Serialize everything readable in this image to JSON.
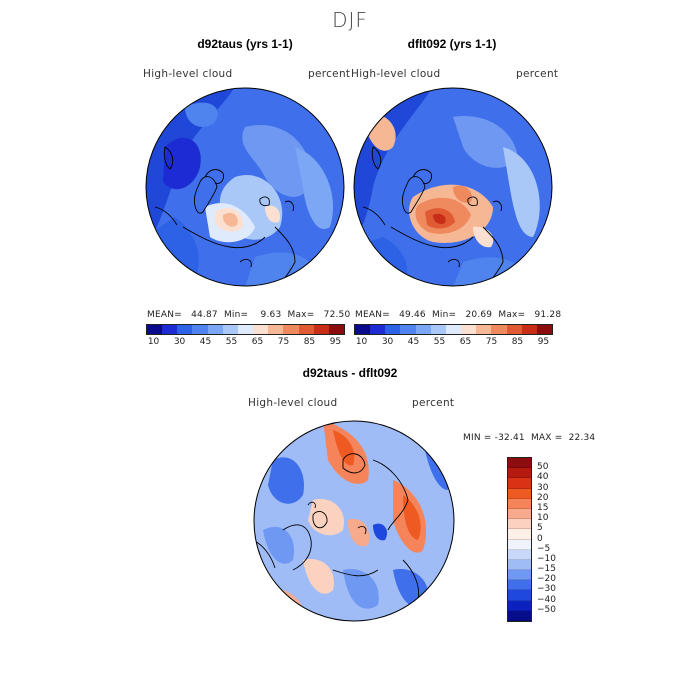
{
  "season": "DJF",
  "colors": {
    "abs_scale": [
      "#0a0a8c",
      "#1c2bd4",
      "#2d62e6",
      "#4f84ef",
      "#7ba7f5",
      "#a9c8f8",
      "#dfeafd",
      "#fbe0d2",
      "#f6b894",
      "#ee8a5e",
      "#e05a34",
      "#c82e17",
      "#8b0d0d"
    ],
    "diff_scale": [
      "#8b0d0d",
      "#b51a0e",
      "#d83314",
      "#ee5a22",
      "#f5845a",
      "#f8ab8c",
      "#fbd2c0",
      "#fdf0e6",
      "#eef3fd",
      "#c8d8fb",
      "#9fbcf7",
      "#6e98f2",
      "#3f6feb",
      "#1f48de",
      "#0b22c0",
      "#050d8a"
    ],
    "land_outline": "#000000"
  },
  "panels": [
    {
      "title": "d92taus (yrs 1-1)",
      "variable": "High-level cloud",
      "units": "percent",
      "stats": {
        "mean_label": "MEAN=",
        "mean": "44.87",
        "min_label": "Min=",
        "min": "9.63",
        "max_label": "Max=",
        "max": "72.50"
      }
    },
    {
      "title": "dflt092 (yrs 1-1)",
      "variable": "High-level cloud",
      "units": "percent",
      "stats": {
        "mean_label": "MEAN=",
        "mean": "49.46",
        "min_label": "Min=",
        "min": "20.69",
        "max_label": "Max=",
        "max": "91.28"
      }
    }
  ],
  "abs_colorbar_labels": [
    "10",
    "30",
    "45",
    "55",
    "65",
    "75",
    "85",
    "95"
  ],
  "diff_panel": {
    "title": "d92taus - dflt092",
    "variable": "High-level cloud",
    "units": "percent",
    "min_label": "MIN =",
    "min": "-32.41",
    "max_label": "MAX =",
    "max": "22.34",
    "colorbar_labels": [
      "50",
      "40",
      "30",
      "20",
      "15",
      "10",
      "5",
      "0",
      "−5",
      "−10",
      "−15",
      "−20",
      "−30",
      "−40",
      "−50"
    ]
  },
  "chart_data": [
    {
      "type": "heatmap",
      "projection": "north-polar-stereographic",
      "title": "d92taus (yrs 1-1)",
      "variable": "High-level cloud",
      "units": "percent",
      "mean": 44.87,
      "min": 9.63,
      "max": 72.5,
      "color_levels": [
        10,
        30,
        45,
        55,
        65,
        75,
        85,
        95
      ]
    },
    {
      "type": "heatmap",
      "projection": "north-polar-stereographic",
      "title": "dflt092 (yrs 1-1)",
      "variable": "High-level cloud",
      "units": "percent",
      "mean": 49.46,
      "min": 20.69,
      "max": 91.28,
      "color_levels": [
        10,
        30,
        45,
        55,
        65,
        75,
        85,
        95
      ]
    },
    {
      "type": "heatmap",
      "projection": "north-polar-stereographic",
      "title": "d92taus - dflt092",
      "variable": "High-level cloud",
      "units": "percent",
      "min": -32.41,
      "max": 22.34,
      "color_levels": [
        -50,
        -40,
        -30,
        -20,
        -15,
        -10,
        -5,
        0,
        5,
        10,
        15,
        20,
        30,
        40,
        50
      ]
    }
  ]
}
